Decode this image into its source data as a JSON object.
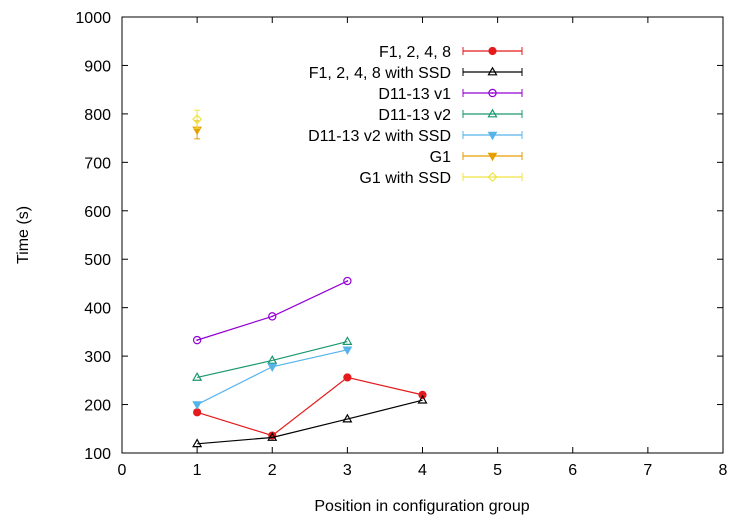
{
  "chart_data": {
    "type": "line",
    "title": "",
    "xlabel": "Position in configuration group",
    "ylabel": "Time (s)",
    "xlim": [
      0,
      8
    ],
    "ylim": [
      100,
      1000
    ],
    "xticks": [
      0,
      1,
      2,
      3,
      4,
      5,
      6,
      7,
      8
    ],
    "yticks": [
      100,
      200,
      300,
      400,
      500,
      600,
      700,
      800,
      900,
      1000
    ],
    "xtick_labels": [
      "0",
      "1",
      "2",
      "3",
      "4",
      "5",
      "6",
      "7",
      "8"
    ],
    "ytick_labels": [
      "100",
      "200",
      "300",
      "400",
      "500",
      "600",
      "700",
      "800",
      "900",
      "1000"
    ],
    "grid": false,
    "legend_position": "top-center",
    "series": [
      {
        "name": "F1, 2, 4, 8",
        "color": "#e41a1c",
        "marker": "filled-circle",
        "x": [
          1,
          2,
          3,
          4
        ],
        "y": [
          184,
          136,
          256,
          220
        ]
      },
      {
        "name": "F1, 2, 4, 8 with SSD",
        "color": "#000000",
        "marker": "open-triangle-up",
        "x": [
          1,
          2,
          3,
          4
        ],
        "y": [
          119,
          132,
          170,
          209
        ]
      },
      {
        "name": "D11-13 v1",
        "color": "#9400d3",
        "marker": "open-circle",
        "x": [
          1,
          2,
          3
        ],
        "y": [
          333,
          382,
          455
        ]
      },
      {
        "name": "D11-13 v2",
        "color": "#1a9870",
        "marker": "open-triangle-up",
        "x": [
          1,
          2,
          3
        ],
        "y": [
          256,
          291,
          330
        ]
      },
      {
        "name": "D11-13 v2 with SSD",
        "color": "#56b4e9",
        "marker": "filled-triangle-down",
        "x": [
          1,
          2,
          3
        ],
        "y": [
          200,
          278,
          313
        ]
      },
      {
        "name": "G1",
        "color": "#e69f00",
        "marker": "filled-triangle-down",
        "x": [
          1
        ],
        "y": [
          767
        ]
      },
      {
        "name": "G1 with SSD",
        "color": "#f0e442",
        "marker": "open-diamond",
        "x": [
          1
        ],
        "y": [
          789
        ]
      }
    ]
  }
}
